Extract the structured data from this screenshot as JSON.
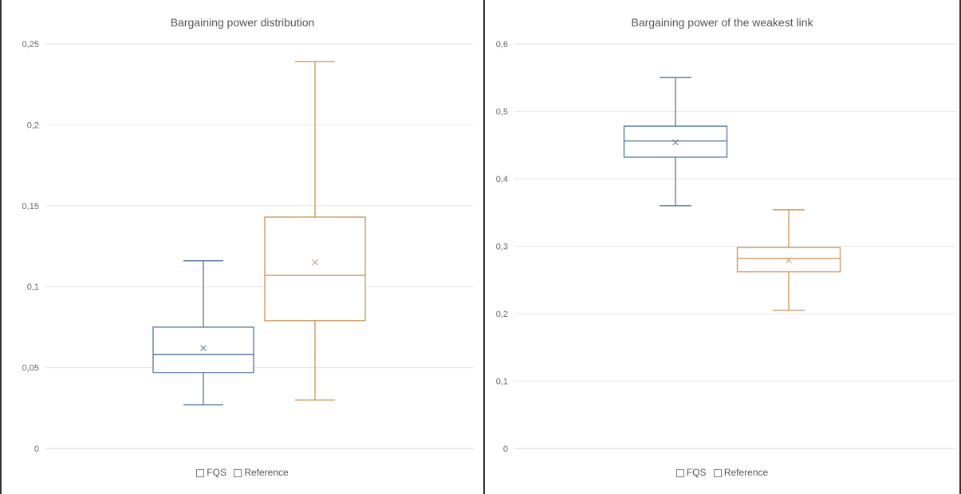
{
  "chart_data": [
    {
      "type": "box",
      "title": "Bargaining power distribution",
      "ylim": [
        0,
        0.25
      ],
      "yticks": [
        "0",
        "0,05",
        "0,1",
        "0,15",
        "0,2",
        "0,25"
      ],
      "grid": true,
      "legend_position": "bottom",
      "series": [
        {
          "name": "FQS",
          "color": "#5b7fa6",
          "whisker_low": 0.027,
          "q1": 0.047,
          "median": 0.058,
          "q3": 0.075,
          "whisker_high": 0.116,
          "mean": 0.062
        },
        {
          "name": "Reference",
          "color": "#d29b61",
          "whisker_low": 0.03,
          "q1": 0.079,
          "median": 0.107,
          "q3": 0.143,
          "whisker_high": 0.239,
          "mean": 0.115
        }
      ]
    },
    {
      "type": "box",
      "title": "Bargaining power of the weakest link",
      "ylim": [
        0,
        0.6
      ],
      "yticks": [
        "0",
        "0,1",
        "0,2",
        "0,3",
        "0,4",
        "0,5",
        "0,6"
      ],
      "grid": true,
      "legend_position": "bottom",
      "series": [
        {
          "name": "FQS",
          "color": "#5b7fa6",
          "whisker_low": 0.36,
          "q1": 0.432,
          "median": 0.456,
          "q3": 0.478,
          "whisker_high": 0.55,
          "mean": 0.454
        },
        {
          "name": "Reference",
          "color": "#d29b61",
          "whisker_low": 0.205,
          "q1": 0.262,
          "median": 0.282,
          "q3": 0.298,
          "whisker_high": 0.354,
          "mean": 0.279
        }
      ]
    }
  ]
}
